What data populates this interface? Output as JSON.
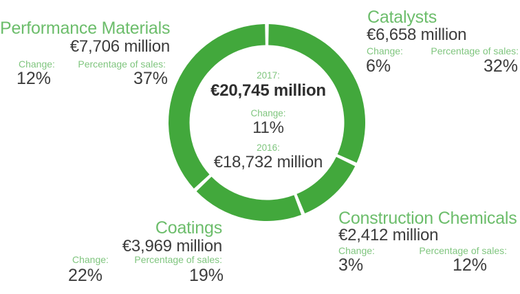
{
  "colors": {
    "ring_green": "#42a83c",
    "title_green": "#6cbd6b",
    "label_green": "#7fc57e",
    "dark_text": "#3c3c3c",
    "bold_dark": "#2e2e2e",
    "background": "#ffffff"
  },
  "labels": {
    "change": "Change:",
    "percentage_of_sales": "Percentage of sales:"
  },
  "center": {
    "year_2017_label": "2017:",
    "sales_2017": "€20,745 million",
    "change_label": "Change:",
    "change_value": "11%",
    "year_2016_label": "2016:",
    "sales_2016": "€18,732 million"
  },
  "chart_data": {
    "type": "pie",
    "subtype": "donut",
    "unit": "million EUR",
    "total_2017_million_eur": 20745,
    "total_2016_million_eur": 18732,
    "total_change_percent": 11,
    "segment_color": "#42a83c",
    "start_angle_deg_clockwise_from_top": 0,
    "segments_clockwise_from_top": [
      {
        "name": "Catalysts",
        "sales_million_eur": 6658,
        "sales_label": "€6,658 million",
        "change_percent": 6,
        "change_label": "6%",
        "percentage_of_sales": 32,
        "percentage_label": "32%"
      },
      {
        "name": "Construction Chemicals",
        "sales_million_eur": 2412,
        "sales_label": "€2,412 million",
        "change_percent": 3,
        "change_label": "3%",
        "percentage_of_sales": 12,
        "percentage_label": "12%"
      },
      {
        "name": "Coatings",
        "sales_million_eur": 3969,
        "sales_label": "€3,969 million",
        "change_percent": 22,
        "change_label": "22%",
        "percentage_of_sales": 19,
        "percentage_label": "19%"
      },
      {
        "name": "Performance Materials",
        "sales_million_eur": 7706,
        "sales_label": "€7,706 million",
        "change_percent": 12,
        "change_label": "12%",
        "percentage_of_sales": 37,
        "percentage_label": "37%"
      }
    ]
  }
}
